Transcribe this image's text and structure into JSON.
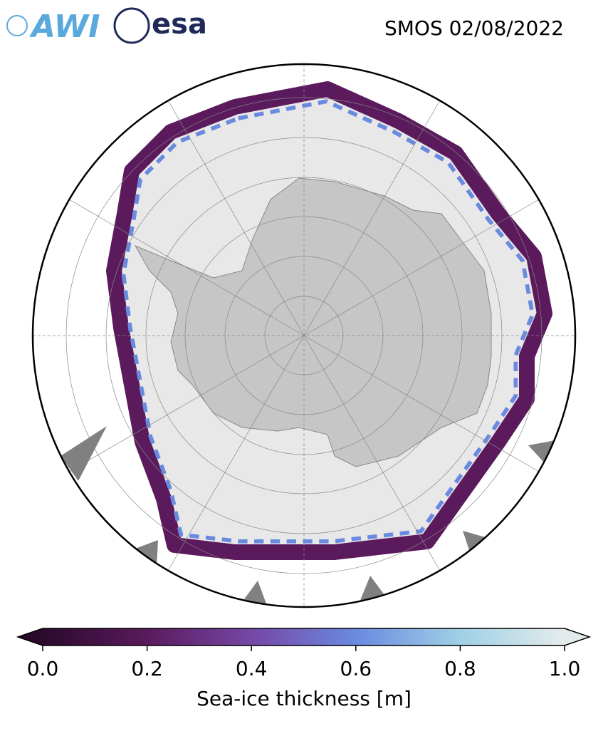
{
  "logos": {
    "awi": "AWI",
    "esa": "esa"
  },
  "title": "SMOS 02/08/2022",
  "colorbar": {
    "label": "Sea-ice thickness [m]",
    "lim": [
      0,
      1
    ],
    "ticks": [
      {
        "value": 0,
        "label": "0.0"
      },
      {
        "value": 0.2,
        "label": "0.2"
      },
      {
        "value": 0.4,
        "label": "0.4"
      },
      {
        "value": 0.6,
        "label": "0.6"
      },
      {
        "value": 0.8,
        "label": "0.8"
      },
      {
        "value": 1,
        "label": "1.0"
      }
    ],
    "colors": [
      "#2b0a2c",
      "#5a1a5c",
      "#7547a6",
      "#6a8ae0",
      "#9fd0e6",
      "#e4eceb"
    ]
  }
}
